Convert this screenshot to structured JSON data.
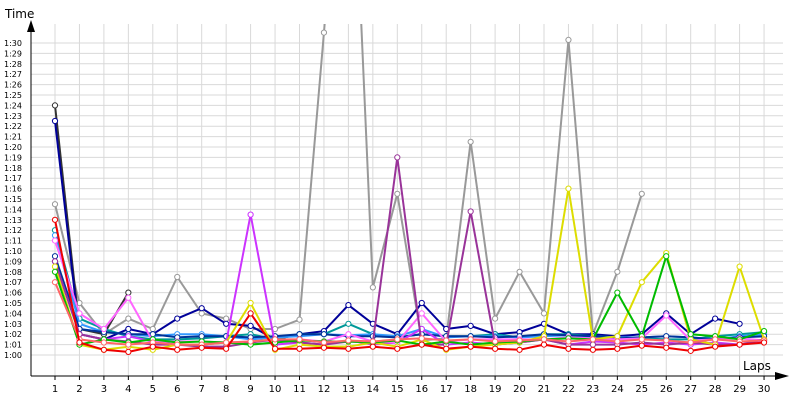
{
  "chart_data": {
    "type": "line",
    "xlabel": "Laps",
    "ylabel": "Time",
    "x": [
      1,
      2,
      3,
      4,
      5,
      6,
      7,
      8,
      9,
      10,
      11,
      12,
      13,
      14,
      15,
      16,
      17,
      18,
      19,
      20,
      21,
      22,
      23,
      24,
      25,
      26,
      27,
      28,
      29,
      30
    ],
    "xlim": [
      1,
      30
    ],
    "ylim": [
      60,
      90
    ],
    "y_ticks": [
      "1:00",
      "1:01",
      "1:02",
      "1:03",
      "1:04",
      "1:05",
      "1:06",
      "1:07",
      "1:08",
      "1:09",
      "1:10",
      "1:11",
      "1:12",
      "1:13",
      "1:14",
      "1:15",
      "1:16",
      "1:17",
      "1:18",
      "1:19",
      "1:20",
      "1:21",
      "1:22",
      "1:23",
      "1:24",
      "1:25",
      "1:26",
      "1:27",
      "1:28",
      "1:29",
      "1:30"
    ],
    "grid": true,
    "legend": "none",
    "series": [
      {
        "color": "#999999",
        "values": [
          74.5,
          65.0,
          62.0,
          63.5,
          62.5,
          67.5,
          64.0,
          63.5,
          62.5,
          62.5,
          63.4,
          91.0,
          120.0,
          66.5,
          75.5,
          61.4,
          61.6,
          80.5,
          63.5,
          68.0,
          64.0,
          90.3,
          62.0,
          68.0,
          75.5,
          null,
          null,
          null,
          null,
          null
        ]
      },
      {
        "color": "#333333",
        "values": [
          84.0,
          62.5,
          62.0,
          66.0,
          null,
          null,
          null,
          null,
          null,
          null,
          null,
          null,
          null,
          null,
          null,
          null,
          null,
          null,
          null,
          null,
          null,
          null,
          null,
          null,
          null,
          null,
          null,
          null,
          null,
          null
        ]
      },
      {
        "color": "#000099",
        "values": [
          82.5,
          62.0,
          61.5,
          62.5,
          62.0,
          63.5,
          64.5,
          63.0,
          62.8,
          61.5,
          62.0,
          62.3,
          64.8,
          63.0,
          62.0,
          65.0,
          62.5,
          62.8,
          62.0,
          62.2,
          63.0,
          62.0,
          62.0,
          61.8,
          62.0,
          64.0,
          62.0,
          63.5,
          63.0,
          null
        ]
      },
      {
        "color": "#009999",
        "values": [
          72.0,
          63.5,
          62.5,
          61.8,
          61.5,
          61.5,
          61.6,
          61.8,
          62.0,
          61.5,
          62.0,
          62.0,
          63.0,
          62.0,
          61.7,
          62.0,
          61.8,
          61.8,
          62.0,
          61.7,
          62.0,
          62.0,
          61.8,
          61.7,
          61.6,
          61.5,
          61.5,
          61.8,
          62.0,
          62.2
        ]
      },
      {
        "color": "#3399ff",
        "values": [
          71.5,
          63.0,
          62.2,
          62.0,
          61.8,
          62.0,
          62.0,
          61.8,
          61.5,
          61.7,
          61.8,
          62.0,
          61.9,
          62.0,
          61.8,
          62.5,
          61.7,
          61.8,
          61.8,
          61.7,
          61.8,
          61.9,
          61.7,
          61.7,
          61.7,
          61.8,
          61.7,
          61.5,
          61.8,
          62.0
        ]
      },
      {
        "color": "#003399",
        "values": [
          69.5,
          62.5,
          62.2,
          62.0,
          62.0,
          61.7,
          61.8,
          61.8,
          61.7,
          61.8,
          62.0,
          62.0,
          61.8,
          61.8,
          61.7,
          62.0,
          61.8,
          61.8,
          61.7,
          61.8,
          62.0,
          61.9,
          61.8,
          61.6,
          61.7,
          61.8,
          61.7,
          61.5,
          61.7,
          61.8
        ]
      },
      {
        "color": "#cc33ff",
        "values": [
          69.0,
          62.0,
          61.5,
          61.8,
          61.3,
          61.0,
          61.0,
          61.2,
          73.5,
          61.0,
          61.2,
          61.0,
          61.4,
          61.0,
          61.2,
          62.5,
          61.0,
          61.2,
          61.0,
          61.2,
          61.5,
          61.0,
          61.3,
          61.2,
          61.0,
          61.2,
          61.0,
          61.2,
          61.0,
          61.3
        ]
      },
      {
        "color": "#ff66ff",
        "values": [
          71.0,
          64.0,
          62.5,
          65.5,
          61.3,
          61.3,
          61.3,
          61.2,
          61.3,
          61.4,
          61.5,
          61.3,
          62.0,
          61.3,
          61.2,
          64.0,
          61.3,
          61.5,
          61.5,
          61.5,
          61.5,
          61.7,
          61.6,
          61.5,
          61.6,
          63.8,
          61.4,
          61.5,
          61.6,
          61.4
        ]
      },
      {
        "color": "#993399",
        "values": [
          69.0,
          62.0,
          61.5,
          61.3,
          61.0,
          61.0,
          60.8,
          60.8,
          61.2,
          61.5,
          61.2,
          61.0,
          61.3,
          61.2,
          79.0,
          61.0,
          61.0,
          73.8,
          61.0,
          61.2,
          61.5,
          61.0,
          61.0,
          61.0,
          61.2,
          61.0,
          61.2,
          61.0,
          61.0,
          61.5
        ]
      },
      {
        "color": "#dddd00",
        "values": [
          68.5,
          61.0,
          60.5,
          60.8,
          60.5,
          61.0,
          61.0,
          61.2,
          65.0,
          60.5,
          61.0,
          60.8,
          60.8,
          61.2,
          60.8,
          61.5,
          60.5,
          60.8,
          61.0,
          61.2,
          61.8,
          76.0,
          61.5,
          61.8,
          67.0,
          69.8,
          61.5,
          61.0,
          68.5,
          61.5
        ]
      },
      {
        "color": "#00bb00",
        "values": [
          68.0,
          61.0,
          61.5,
          61.2,
          61.5,
          61.2,
          61.3,
          61.2,
          61.0,
          61.2,
          61.4,
          61.3,
          61.3,
          61.2,
          61.4,
          61.0,
          61.3,
          61.0,
          61.2,
          61.3,
          61.5,
          61.6,
          61.5,
          66.0,
          61.8,
          69.5,
          62.0,
          61.8,
          61.5,
          62.3
        ]
      },
      {
        "color": "#ff6666",
        "values": [
          67.0,
          61.5,
          61.2,
          61.0,
          61.2,
          61.0,
          61.0,
          61.2,
          61.3,
          61.5,
          61.5,
          61.2,
          61.4,
          61.3,
          61.5,
          61.6,
          61.4,
          61.5,
          61.3,
          61.4,
          61.5,
          61.3,
          61.5,
          61.3,
          61.5,
          61.4,
          61.2,
          61.5,
          61.3,
          61.4
        ]
      },
      {
        "color": "#ee0000",
        "values": [
          73.0,
          61.2,
          60.5,
          60.3,
          60.8,
          60.5,
          60.7,
          60.6,
          64.0,
          60.6,
          60.6,
          60.7,
          60.6,
          60.8,
          60.6,
          61.0,
          60.6,
          60.8,
          60.6,
          60.5,
          61.0,
          60.6,
          60.5,
          60.6,
          60.9,
          60.7,
          60.4,
          60.8,
          61.0,
          61.2
        ]
      }
    ]
  }
}
